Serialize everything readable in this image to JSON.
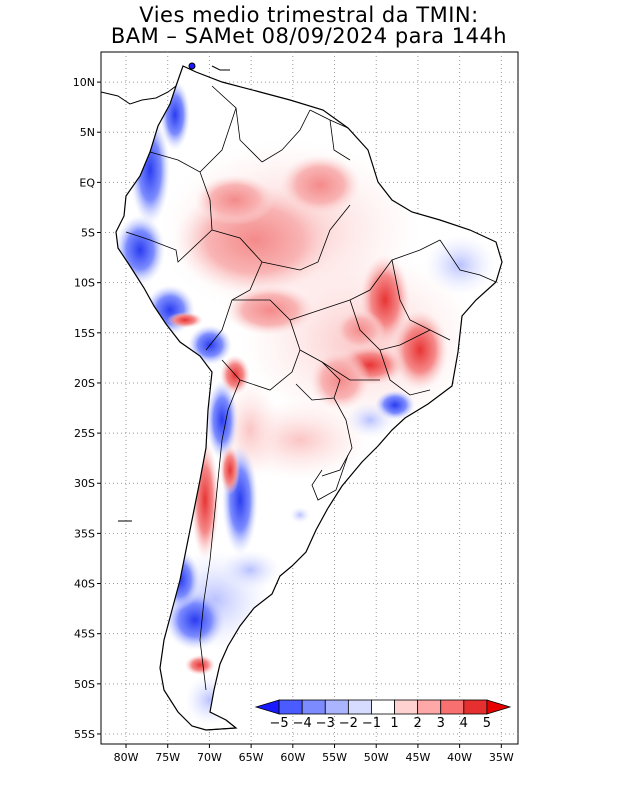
{
  "title": {
    "line1": "Vies medio trimestral da TMIN:",
    "line2": "BAM – SAMet 08/09/2024  para 144h"
  },
  "axes": {
    "lat_labels": [
      "10N",
      "5N",
      "EQ",
      "5S",
      "10S",
      "15S",
      "20S",
      "25S",
      "30S",
      "35S",
      "40S",
      "45S",
      "50S",
      "55S"
    ],
    "lon_labels": [
      "80W",
      "75W",
      "70W",
      "65W",
      "60W",
      "55W",
      "50W",
      "45W",
      "40W",
      "35W"
    ],
    "lat_values": [
      10,
      5,
      0,
      -5,
      -10,
      -15,
      -20,
      -25,
      -30,
      -35,
      -40,
      -45,
      -50,
      -55
    ],
    "lon_values": [
      -80,
      -75,
      -70,
      -65,
      -60,
      -55,
      -50,
      -45,
      -40,
      -35
    ],
    "lon_range": [
      -83,
      -33
    ],
    "lat_range": [
      -56,
      13
    ],
    "grid": true,
    "grid_style": "dotted"
  },
  "colorbar": {
    "labels": [
      "−5",
      "−4",
      "−3",
      "−2",
      "−1",
      "1",
      "2",
      "3",
      "4",
      "5"
    ],
    "colors": [
      "#1a1aff",
      "#4a5cff",
      "#7c8cff",
      "#aab4ff",
      "#d6dcff",
      "#ffffff",
      "#ffd2d2",
      "#ffa8a8",
      "#f87070",
      "#e63030",
      "#e60000"
    ],
    "placement": "bottom-right"
  }
}
